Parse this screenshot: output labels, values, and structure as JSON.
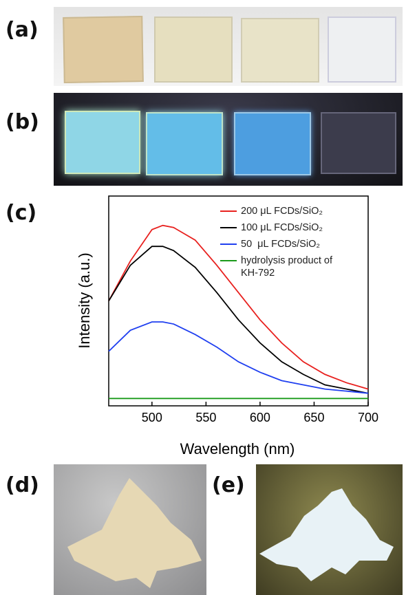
{
  "panel_labels": [
    "(a)",
    "(b)",
    "(c)",
    "(d)",
    "(e)"
  ],
  "chart_data": {
    "type": "line",
    "x_label": "Wavelength (nm)",
    "y_label": "Intensity (a.u.)",
    "x": [
      460,
      480,
      500,
      510,
      520,
      540,
      560,
      580,
      600,
      620,
      640,
      660,
      680,
      700
    ],
    "series": [
      {
        "name": "200 μL FCDs/SiO₂",
        "color": "#e8201e",
        "values": [
          50,
          69,
          84,
          86,
          85,
          79,
          67,
          54,
          41,
          30,
          21,
          15,
          11,
          8
        ]
      },
      {
        "name": "100 μL FCDs/SiO₂",
        "color": "#000000",
        "values": [
          50,
          67,
          76,
          76,
          74,
          66,
          54,
          41,
          30,
          21,
          15,
          10,
          8,
          6
        ]
      },
      {
        "name": "50  μL FCDs/SiO₂",
        "color": "#1f3ff0",
        "values": [
          26,
          36,
          40,
          40,
          39,
          34,
          28,
          21,
          16,
          12,
          10,
          8,
          7,
          6
        ]
      },
      {
        "name": "hydrolysis product of KH-792",
        "color": "#1a9a1a",
        "values": [
          3.5,
          3.5,
          3.5,
          3.5,
          3.5,
          3.5,
          3.5,
          3.5,
          3.5,
          3.5,
          3.5,
          3.5,
          3.5,
          3.5
        ]
      }
    ],
    "xlim": [
      460,
      700
    ],
    "xticks": [
      500,
      550,
      600,
      650,
      700
    ],
    "ylim": [
      0,
      100
    ]
  }
}
